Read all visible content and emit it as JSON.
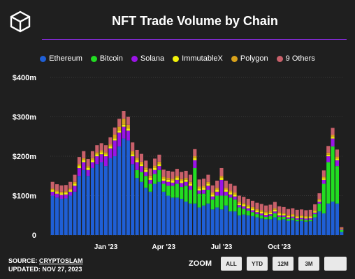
{
  "header": {
    "title": "NFT Trade Volume by Chain"
  },
  "legend": [
    {
      "label": "Ethereum",
      "color": "#1f5fd6"
    },
    {
      "label": "Bitcoin",
      "color": "#22dd22"
    },
    {
      "label": "Solana",
      "color": "#9a14e6"
    },
    {
      "label": "ImmutableX",
      "color": "#f2f20a"
    },
    {
      "label": "Polygon",
      "color": "#d9a21b"
    },
    {
      "label": "9 Others",
      "color": "#c9606a"
    }
  ],
  "footer": {
    "source_prefix": "SOURCE: ",
    "source_link": "CRYPTOSLAM",
    "updated": "UPDATED: NOV 27, 2023"
  },
  "zoom": {
    "label": "ZOOM",
    "buttons": [
      "ALL",
      "YTD",
      "12M",
      "3M"
    ]
  },
  "chart_data": {
    "type": "bar",
    "stacked": true,
    "title": "NFT Trade Volume by Chain",
    "y_tick_labels": [
      "0",
      "$100m",
      "$200m",
      "$300m",
      "$400m"
    ],
    "y_ticks": [
      0,
      100,
      200,
      300,
      400
    ],
    "ylim": [
      0,
      400
    ],
    "x_tick_labels": [
      {
        "label": "Jan '23",
        "index": 12
      },
      {
        "label": "Apr '23",
        "index": 25
      },
      {
        "label": "Jul '23",
        "index": 38
      },
      {
        "label": "Oct '23",
        "index": 51
      }
    ],
    "grid": true,
    "legend_position": "top",
    "series": [
      {
        "name": "Ethereum",
        "color": "#1f5fd6",
        "values": [
          100,
          95,
          92,
          93,
          100,
          110,
          150,
          165,
          150,
          170,
          180,
          185,
          175,
          195,
          200,
          225,
          245,
          240,
          180,
          145,
          135,
          120,
          110,
          130,
          135,
          110,
          100,
          95,
          95,
          92,
          85,
          80,
          80,
          70,
          75,
          80,
          65,
          70,
          65,
          75,
          60,
          60,
          50,
          52,
          50,
          48,
          45,
          42,
          40,
          40,
          45,
          38,
          40,
          36,
          38,
          35,
          36,
          34,
          35,
          45,
          60,
          55,
          80,
          85,
          80,
          8
        ]
      },
      {
        "name": "Bitcoin",
        "color": "#22dd22",
        "values": [
          0,
          0,
          0,
          0,
          0,
          0,
          0,
          0,
          0,
          0,
          0,
          0,
          0,
          0,
          0,
          0,
          0,
          0,
          0,
          20,
          25,
          30,
          20,
          25,
          30,
          20,
          25,
          30,
          35,
          30,
          40,
          35,
          90,
          35,
          30,
          35,
          25,
          30,
          35,
          25,
          35,
          30,
          20,
          15,
          12,
          10,
          8,
          8,
          6,
          8,
          10,
          8,
          6,
          5,
          5,
          4,
          4,
          4,
          4,
          8,
          20,
          75,
          105,
          140,
          95,
          5
        ]
      },
      {
        "name": "Solana",
        "color": "#9a14e6",
        "values": [
          10,
          10,
          10,
          10,
          10,
          15,
          20,
          20,
          15,
          15,
          20,
          20,
          25,
          25,
          40,
          35,
          30,
          25,
          20,
          20,
          15,
          10,
          10,
          10,
          10,
          8,
          10,
          8,
          10,
          10,
          10,
          10,
          20,
          8,
          10,
          10,
          8,
          10,
          40,
          10,
          8,
          8,
          6,
          6,
          6,
          5,
          5,
          5,
          5,
          5,
          5,
          4,
          4,
          4,
          4,
          4,
          4,
          4,
          4,
          4,
          5,
          10,
          15,
          20,
          15,
          2
        ]
      },
      {
        "name": "ImmutableX",
        "color": "#f2f20a",
        "values": [
          4,
          4,
          4,
          4,
          4,
          5,
          5,
          5,
          5,
          5,
          5,
          5,
          5,
          5,
          5,
          5,
          5,
          5,
          5,
          5,
          5,
          5,
          5,
          5,
          5,
          5,
          5,
          5,
          5,
          5,
          5,
          5,
          5,
          5,
          5,
          5,
          5,
          5,
          5,
          5,
          5,
          5,
          4,
          4,
          4,
          4,
          4,
          4,
          4,
          4,
          4,
          4,
          3,
          3,
          3,
          3,
          3,
          3,
          3,
          3,
          3,
          4,
          4,
          4,
          4,
          1
        ]
      },
      {
        "name": "Polygon",
        "color": "#d9a21b",
        "values": [
          4,
          4,
          4,
          4,
          4,
          5,
          5,
          5,
          5,
          5,
          5,
          5,
          5,
          5,
          10,
          10,
          15,
          10,
          8,
          6,
          6,
          6,
          6,
          6,
          6,
          5,
          5,
          5,
          5,
          5,
          5,
          5,
          5,
          5,
          5,
          5,
          5,
          5,
          5,
          5,
          5,
          5,
          4,
          4,
          4,
          4,
          4,
          4,
          4,
          4,
          4,
          4,
          3,
          3,
          3,
          3,
          3,
          3,
          3,
          3,
          3,
          4,
          5,
          5,
          5,
          1
        ]
      },
      {
        "name": "9 Others",
        "color": "#c9606a",
        "values": [
          17,
          16,
          16,
          16,
          17,
          18,
          18,
          18,
          18,
          18,
          18,
          18,
          18,
          18,
          18,
          20,
          20,
          20,
          22,
          20,
          20,
          18,
          18,
          18,
          18,
          18,
          18,
          18,
          18,
          18,
          18,
          18,
          18,
          18,
          18,
          18,
          18,
          18,
          20,
          18,
          17,
          17,
          16,
          16,
          16,
          16,
          16,
          16,
          16,
          16,
          16,
          15,
          15,
          15,
          15,
          15,
          15,
          15,
          15,
          15,
          15,
          16,
          17,
          18,
          18,
          3
        ]
      }
    ]
  }
}
